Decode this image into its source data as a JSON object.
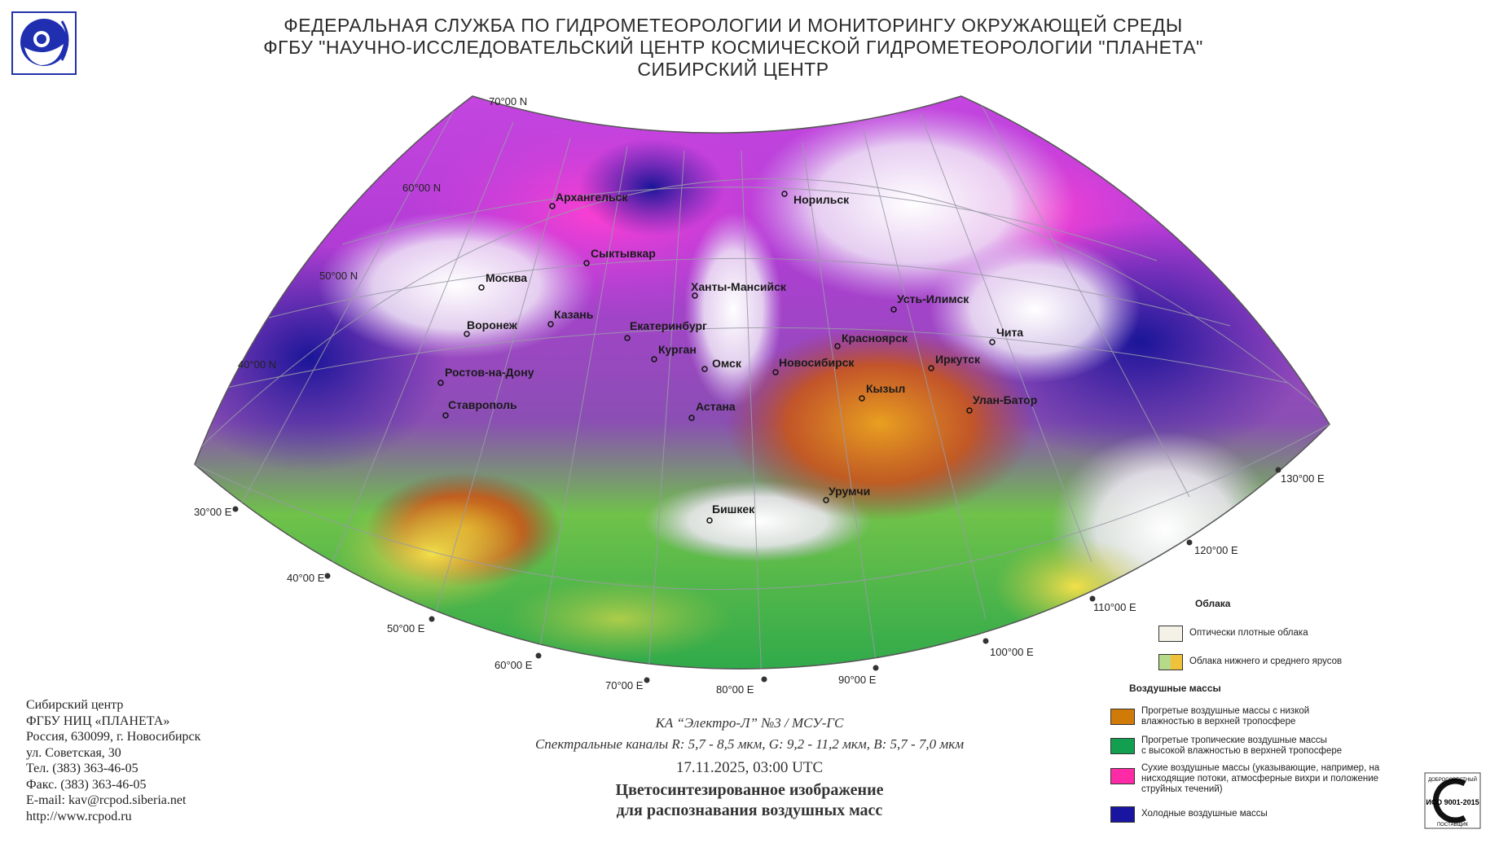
{
  "header": {
    "line1": "ФЕДЕРАЛЬНАЯ СЛУЖБА ПО ГИДРОМЕТЕОРОЛОГИИ И МОНИТОРИНГУ ОКРУЖАЮЩЕЙ СРЕДЫ",
    "line2": "ФГБУ \"НАУЧНО-ИССЛЕДОВАТЕЛЬСКИЙ ЦЕНТР КОСМИЧЕСКОЙ ГИДРОМЕТЕОРОЛОГИИ \"ПЛАНЕТА\"",
    "line3": "СИБИРСКИЙ ЦЕНТР"
  },
  "logos": {
    "left": "planeta-logo-icon",
    "right_text": [
      "ДОБРОСОВЕСТНЫЙ",
      "ИСО 9001-2015",
      "ПОСТАВЩИК"
    ]
  },
  "map": {
    "lat_labels": [
      "70°00 N",
      "60°00 N",
      "50°00 N",
      "40°00 N"
    ],
    "lon_labels": [
      "30°00 E",
      "40°00 E",
      "50°00 E",
      "60°00 E",
      "70°00 E",
      "80°00 E",
      "90°00 E",
      "100°00 E",
      "110°00 E",
      "120°00 E",
      "130°00 E"
    ],
    "cities": [
      "Архангельск",
      "Норильск",
      "Сыктывкар",
      "Москва",
      "Ханты-Мансийск",
      "Казань",
      "Усть-Илимск",
      "Воронеж",
      "Екатеринбург",
      "Красноярск",
      "Чита",
      "Курган",
      "Омск",
      "Новосибирск",
      "Иркутск",
      "Ростов-на-Дону",
      "Кызыл",
      "Ставрополь",
      "Астана",
      "Улан-Батор",
      "Урумчи",
      "Бишкек"
    ]
  },
  "address": {
    "lines": [
      "Сибирский центр",
      "ФГБУ НИЦ «ПЛАНЕТА»",
      "Россия, 630099, г. Новосибирск",
      "ул. Советская, 30",
      "Тел. (383) 363-46-05",
      "Факс. (383) 363-46-05",
      "E-mail: kav@rcpod.siberia.net",
      "http://www.rcpod.ru"
    ]
  },
  "caption": {
    "satellite": "КА “Электро-Л” №3 / МСУ-ГС",
    "channels": "Спектральные каналы R: 5,7 - 8,5 мкм, G: 9,2 - 11,2 мкм, B: 5,7 - 7,0 мкм",
    "datetime": "17.11.2025, 03:00 UTC",
    "title1": "Цветосинтезированное изображение",
    "title2": "для распознавания воздушных масс"
  },
  "legend": {
    "clouds_title": "Облака",
    "clouds": [
      {
        "label": "Оптически плотные облака",
        "colors": [
          "#f4f2e6"
        ]
      },
      {
        "label": "Облака нижнего и среднего ярусов",
        "colors": [
          "#b7d98a",
          "#f0c23a"
        ]
      }
    ],
    "air_title": "Воздушные массы",
    "air": [
      {
        "label1": "Прогретые воздушные массы с низкой",
        "label2": "влажностью в верхней тропосфере",
        "label3": "",
        "color": "#d07a08"
      },
      {
        "label1": "Прогретые тропичеcкие воздушные массы",
        "label2": "с высокой влажностью в верхней тропосфере",
        "label3": "",
        "color": "#12a050"
      },
      {
        "label1": "Сухие воздушные массы (указывающие, например, на",
        "label2": "нисходящие потоки, атмосферные вихри и положение",
        "label3": "струйных течений)",
        "color": "#ff2aa6"
      },
      {
        "label1": "Холодные воздушные массы",
        "label2": "",
        "label3": "",
        "color": "#1a15a0"
      }
    ]
  }
}
